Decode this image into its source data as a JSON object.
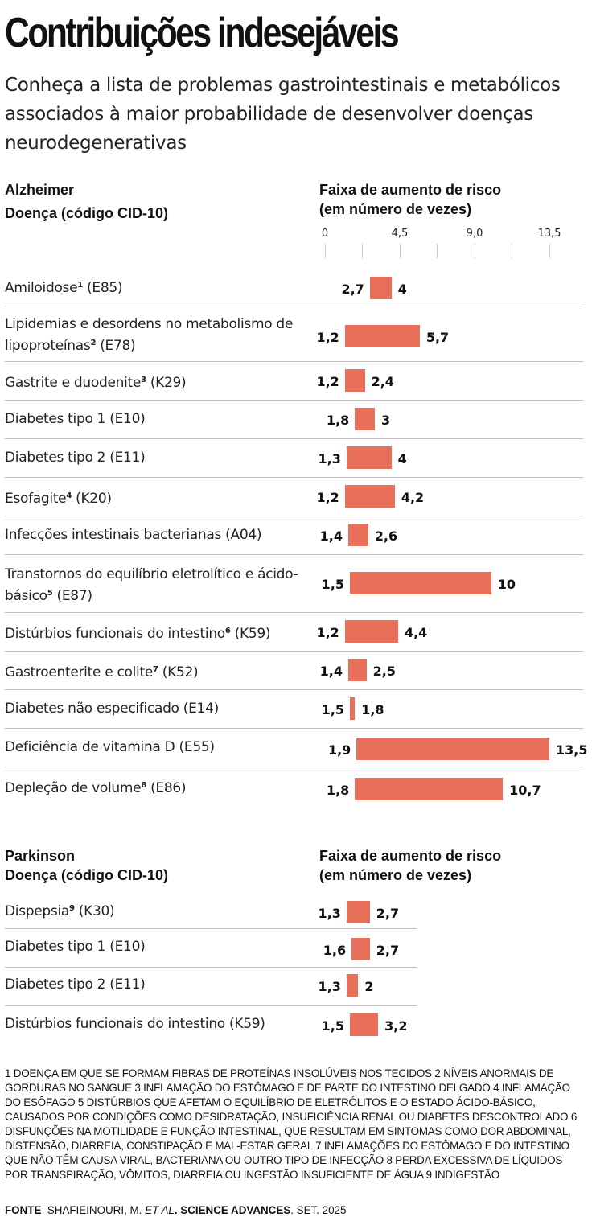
{
  "title": "Contribuições indesejáveis",
  "subtitle": "Conheça a lista de problemas gastrointestinais e metabólicos associados à maior probabilidade de desenvolver doenças neurodegenerativas",
  "colors": {
    "bar": "#E8705A",
    "separator": "#BDBDBD",
    "text": "#111111"
  },
  "chart_data": [
    {
      "type": "bar",
      "subtype": "floating-range",
      "title": "Alzheimer",
      "ylabel": "Doença (código CID-10)",
      "xlabel": "Faixa de aumento de risco (em número de vezes)",
      "xlim": [
        0,
        13.5
      ],
      "xticks": [
        "0",
        "4,5",
        "9,0",
        "13,5"
      ],
      "xtick_values": [
        0,
        4.5,
        9.0,
        13.5
      ],
      "minor_ticks": [
        2.25,
        6.75,
        11.25
      ],
      "grid": false,
      "rows": [
        {
          "label": "Amiloidose",
          "note": "1",
          "code": "(E85)",
          "min": 2.7,
          "max": 4,
          "min_label": "2,7",
          "max_label": "4"
        },
        {
          "label": "Lipidemias e desordens no metabolismo de lipoproteínas",
          "note": "2",
          "code": "(E78)",
          "min": 1.2,
          "max": 5.7,
          "min_label": "1,2",
          "max_label": "5,7"
        },
        {
          "label": "Gastrite e duodenite",
          "note": "3",
          "code": "(K29)",
          "min": 1.2,
          "max": 2.4,
          "min_label": "1,2",
          "max_label": "2,4"
        },
        {
          "label": "Diabetes tipo 1",
          "note": "",
          "code": "(E10)",
          "min": 1.8,
          "max": 3,
          "min_label": "1,8",
          "max_label": "3"
        },
        {
          "label": "Diabetes tipo 2",
          "note": "",
          "code": "(E11)",
          "min": 1.3,
          "max": 4,
          "min_label": "1,3",
          "max_label": "4"
        },
        {
          "label": "Esofagite",
          "note": "4",
          "code": "(K20)",
          "min": 1.2,
          "max": 4.2,
          "min_label": "1,2",
          "max_label": "4,2"
        },
        {
          "label": "Infecções intestinais bacterianas",
          "note": "",
          "code": "(A04)",
          "min": 1.4,
          "max": 2.6,
          "min_label": "1,4",
          "max_label": "2,6"
        },
        {
          "label": "Transtornos do equilíbrio eletrolítico e ácido-básico",
          "note": "5",
          "code": "(E87)",
          "min": 1.5,
          "max": 10,
          "min_label": "1,5",
          "max_label": "10"
        },
        {
          "label": "Distúrbios funcionais do intestino",
          "note": "6",
          "code": "(K59)",
          "min": 1.2,
          "max": 4.4,
          "min_label": "1,2",
          "max_label": "4,4"
        },
        {
          "label": "Gastroenterite e colite",
          "note": "7",
          "code": "(K52)",
          "min": 1.4,
          "max": 2.5,
          "min_label": "1,4",
          "max_label": "2,5"
        },
        {
          "label": "Diabetes não especificado",
          "note": "",
          "code": "(E14)",
          "min": 1.5,
          "max": 1.8,
          "min_label": "1,5",
          "max_label": "1,8"
        },
        {
          "label": "Deficiência de vitamina D",
          "note": "",
          "code": "(E55)",
          "min": 1.9,
          "max": 13.5,
          "min_label": "1,9",
          "max_label": "13,5"
        },
        {
          "label": "Depleção de volume",
          "note": "8",
          "code": "(E86)",
          "min": 1.8,
          "max": 10.7,
          "min_label": "1,8",
          "max_label": "10,7"
        }
      ]
    },
    {
      "type": "bar",
      "subtype": "floating-range",
      "title": "Parkinson",
      "ylabel": "Doença (código CID-10)",
      "xlabel": "Faixa de aumento de risco (em número de vezes)",
      "xlim": [
        0,
        13.5
      ],
      "grid": false,
      "rows": [
        {
          "label": "Dispepsia",
          "note": "9",
          "code": "(K30)",
          "min": 1.3,
          "max": 2.7,
          "min_label": "1,3",
          "max_label": "2,7"
        },
        {
          "label": "Diabetes tipo 1",
          "note": "",
          "code": "(E10)",
          "min": 1.6,
          "max": 2.7,
          "min_label": "1,6",
          "max_label": "2,7"
        },
        {
          "label": "Diabetes tipo 2",
          "note": "",
          "code": "(E11)",
          "min": 1.3,
          "max": 2,
          "min_label": "1,3",
          "max_label": "2"
        },
        {
          "label": "Distúrbios funcionais do intestino",
          "note": "",
          "code": "(K59)",
          "min": 1.5,
          "max": 3.2,
          "min_label": "1,5",
          "max_label": "3,2"
        }
      ]
    }
  ],
  "sections": {
    "alzheimer": {
      "title": "Alzheimer",
      "col_left": "Doença (código CID-10)",
      "col_right_1": "Faixa de aumento de risco",
      "col_right_2": "(em número de vezes)"
    },
    "parkinson": {
      "title": "Parkinson",
      "col_left": "Doença (código CID-10)",
      "col_right_1": "Faixa de aumento de risco",
      "col_right_2": "(em número de vezes)"
    }
  },
  "footnotes": "1 DOENÇA EM QUE SE FORMAM FIBRAS DE PROTEÍNAS INSOLÚVEIS NOS TECIDOS  2 NÍVEIS ANORMAIS DE GORDURAS NO SANGUE 3 INFLAMAÇÃO DO ESTÔMAGO E DE PARTE DO INTESTINO DELGADO  4 INFLAMAÇÃO DO ESÔFAGO  5 DISTÚRBIOS QUE AFETAM O EQUILÍBRIO DE ELETRÓLITOS E O ESTADO ÁCIDO-BÁSICO, CAUSADOS POR CONDIÇÕES COMO DESIDRATAÇÃO, INSUFICIÊNCIA RENAL OU DIABETES DESCONTROLADO  6 DISFUNÇÕES NA MOTILIDADE E FUNÇÃO INTESTINAL, QUE RESULTAM EM SINTOMAS COMO DOR ABDOMINAL, DISTENSÃO, DIARREIA, CONSTIPAÇÃO E MAL-ESTAR GERAL  7 INFLAMAÇÕES DO ESTÔMAGO E DO INTESTINO QUE NÃO TÊM CAUSA VIRAL, BACTERIANA OU OUTRO TIPO DE INFECÇÃO  8 PERDA EXCESSIVA DE LÍQUIDOS POR TRANSPIRAÇÃO, VÔMITOS, DIARREIA OU INGESTÃO INSUFICIENTE DE ÁGUA  9 INDIGESTÃO",
  "source": {
    "label": "FONTE",
    "author": "SHAFIEINOURI, M.",
    "etal": "ET AL",
    "journal": ". SCIENCE ADVANCES",
    "date": ". SET. 2025"
  }
}
